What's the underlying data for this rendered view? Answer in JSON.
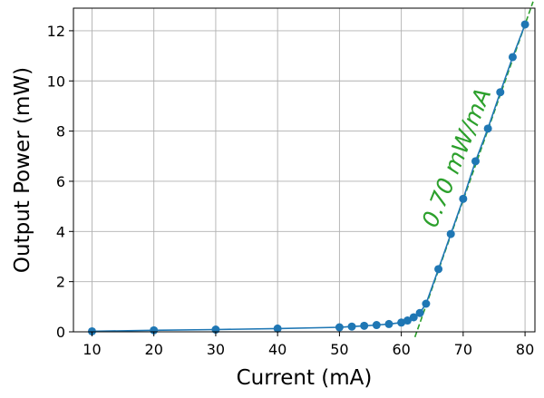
{
  "chart_data": {
    "type": "line",
    "xlabel": "Current (mA)",
    "ylabel": "Output Power (mW)",
    "xlim": [
      7,
      81.6
    ],
    "ylim": [
      0,
      12.9
    ],
    "xticks": [
      10,
      20,
      30,
      40,
      50,
      60,
      70,
      80
    ],
    "yticks": [
      0,
      2,
      4,
      6,
      8,
      10,
      12
    ],
    "grid": true,
    "colors": {
      "data": "#1f77b4",
      "fit": "#2ca02c",
      "grid": "#b0b0b0"
    },
    "series": [
      {
        "x": [
          10,
          20,
          30,
          40,
          50,
          52,
          54,
          56,
          58,
          60,
          61,
          62,
          63,
          64,
          66,
          68,
          70,
          72,
          74,
          76,
          78,
          80
        ],
        "y": [
          0.02,
          0.06,
          0.09,
          0.13,
          0.18,
          0.21,
          0.24,
          0.27,
          0.31,
          0.37,
          0.45,
          0.58,
          0.75,
          1.12,
          2.5,
          3.9,
          5.3,
          6.8,
          8.1,
          9.55,
          10.95,
          12.25
        ]
      }
    ],
    "fit_line": {
      "slope": 0.7,
      "intercept": -43.75,
      "x_range": [
        62.2,
        81.3
      ]
    },
    "annotations": [
      {
        "text": "0.70 mW/mA",
        "x": 65.6,
        "y": 4.1,
        "angle": -68
      }
    ]
  }
}
